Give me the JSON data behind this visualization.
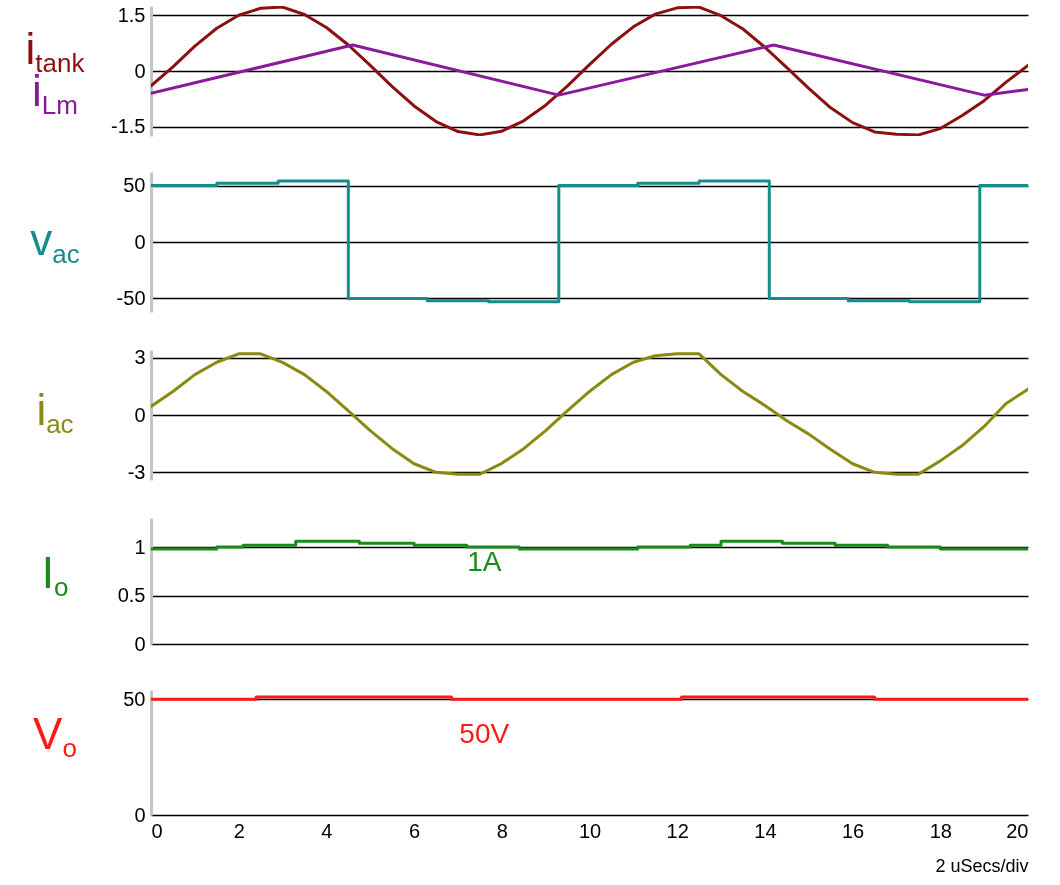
{
  "chart_data": [
    {
      "type": "line",
      "legend": "left",
      "tick_labels": "y",
      "grid": "y",
      "xlim": [
        0,
        20
      ],
      "ylim": [
        -1.75,
        1.75
      ],
      "yticks": [
        -1.5,
        0,
        1.5
      ],
      "series": [
        {
          "name": "i$_{tank}$",
          "color": "#8b1010",
          "x": [
            0,
            0.5,
            1,
            1.5,
            2,
            2.5,
            3,
            3.5,
            4,
            4.5,
            5,
            5.5,
            6,
            6.5,
            7,
            7.5,
            8,
            8.5,
            9,
            9.5,
            10,
            10.5,
            11,
            11.5,
            12,
            12.5,
            13,
            13.5,
            14,
            14.5,
            15,
            15.5,
            16,
            16.5,
            17,
            17.5,
            18,
            18.5,
            19,
            19.5,
            20
          ],
          "values": [
            -0.4,
            0.11,
            0.67,
            1.15,
            1.5,
            1.69,
            1.72,
            1.52,
            1.17,
            0.7,
            0.15,
            -0.42,
            -0.94,
            -1.36,
            -1.63,
            -1.72,
            -1.62,
            -1.34,
            -0.92,
            -0.4,
            0.17,
            0.72,
            1.19,
            1.53,
            1.7,
            1.72,
            1.49,
            1.13,
            0.64,
            0.09,
            -0.47,
            -0.99,
            -1.39,
            -1.64,
            -1.7,
            -1.72,
            -1.55,
            -1.2,
            -0.8,
            -0.3,
            0.15
          ]
        },
        {
          "name": "i$_{Lm}$",
          "color": "#8a1a9a",
          "x": [
            0,
            4.6,
            9.3,
            14.2,
            19,
            20
          ],
          "values": [
            -0.6,
            0.7,
            -0.65,
            0.7,
            -0.65,
            -0.5
          ]
        }
      ]
    },
    {
      "type": "line",
      "legend": "left",
      "tick_labels": "y",
      "grid": "y",
      "xlim": [
        0,
        20
      ],
      "ylim": [
        -62,
        62
      ],
      "yticks": [
        -50,
        0,
        50
      ],
      "series": [
        {
          "name": "v$_{ac}$",
          "color": "#178c8c",
          "x": [
            0,
            1.5,
            1.5,
            2.9,
            2.9,
            4.5,
            4.5,
            6.3,
            6.3,
            7.7,
            7.7,
            9.3,
            9.3,
            11.1,
            11.1,
            12.5,
            12.5,
            14.1,
            14.1,
            15.9,
            15.9,
            17.3,
            17.3,
            18.9,
            18.9,
            20
          ],
          "values": [
            50,
            50,
            52,
            52,
            54,
            54,
            -50,
            -50,
            -52,
            -52,
            -53,
            -53,
            50,
            50,
            52,
            52,
            54,
            54,
            -50,
            -50,
            -52,
            -52,
            -53,
            -53,
            50,
            50
          ]
        }
      ]
    },
    {
      "type": "line",
      "legend": "left",
      "tick_labels": "y",
      "grid": "y",
      "xlim": [
        0,
        20
      ],
      "ylim": [
        -3.4,
        3.4
      ],
      "yticks": [
        -3,
        0,
        3
      ],
      "series": [
        {
          "name": "i$_{ac}$",
          "color": "#8a8a12",
          "x": [
            0,
            0.5,
            1,
            1.5,
            2,
            2.5,
            3,
            3.5,
            4,
            4.5,
            5,
            5.5,
            6,
            6.5,
            7,
            7.5,
            8,
            8.5,
            9,
            9.5,
            10,
            10.5,
            11,
            11.5,
            12,
            12.5,
            13,
            13.5,
            14,
            14.5,
            15,
            15.5,
            16,
            16.5,
            17,
            17.5,
            18,
            18.5,
            19,
            19.5,
            20
          ],
          "values": [
            0.45,
            1.23,
            2.11,
            2.76,
            3.2,
            3.2,
            2.75,
            2.11,
            1.23,
            0.22,
            -0.82,
            -1.76,
            -2.55,
            -3.0,
            -3.1,
            -3.1,
            -2.53,
            -1.76,
            -0.82,
            0.23,
            1.23,
            2.11,
            2.76,
            3.1,
            3.2,
            3.2,
            2.11,
            1.23,
            0.5,
            -0.3,
            -1.0,
            -1.8,
            -2.55,
            -3.0,
            -3.1,
            -3.1,
            -2.4,
            -1.6,
            -0.6,
            0.6,
            1.35
          ]
        }
      ]
    },
    {
      "type": "line",
      "legend": "left",
      "tick_labels": "y",
      "grid": "y",
      "xlim": [
        0,
        20
      ],
      "ylim": [
        0,
        1.3
      ],
      "yticks": [
        0,
        0.5,
        1
      ],
      "annotations": [
        "1A"
      ],
      "series": [
        {
          "name": "I$_{o}$",
          "color": "#1a8a1a",
          "x": [
            0,
            1.5,
            1.5,
            2.1,
            2.1,
            3.3,
            3.3,
            4.75,
            4.75,
            6.0,
            6.0,
            7.2,
            7.2,
            8.4,
            8.4,
            11.1,
            11.1,
            12.3,
            12.3,
            13.0,
            13.0,
            14.4,
            14.4,
            15.6,
            15.6,
            16.8,
            16.8,
            18.0,
            18.0,
            20
          ],
          "values": [
            0.98,
            0.98,
            1.0,
            1.0,
            1.02,
            1.02,
            1.06,
            1.06,
            1.04,
            1.04,
            1.02,
            1.02,
            1.0,
            1.0,
            0.98,
            0.98,
            1.0,
            1.0,
            1.02,
            1.02,
            1.06,
            1.06,
            1.04,
            1.04,
            1.02,
            1.02,
            1.0,
            1.0,
            0.98,
            0.98
          ]
        }
      ]
    },
    {
      "type": "line",
      "legend": "left",
      "grid": "y",
      "xlim": [
        0,
        20
      ],
      "xticks": [
        0,
        2,
        4,
        6,
        8,
        10,
        12,
        14,
        16,
        18,
        20
      ],
      "xlabel": "2 uSecs/div",
      "ylim": [
        0,
        54
      ],
      "yticks": [
        0,
        50
      ],
      "annotations": [
        "50V"
      ],
      "series": [
        {
          "name": "V$_{o}$",
          "color": "#ff1a1a",
          "x": [
            0,
            2.4,
            2.4,
            6.85,
            6.85,
            12.1,
            12.1,
            16.5,
            16.5,
            20
          ],
          "values": [
            50,
            50,
            51,
            51,
            50,
            50,
            51,
            51,
            50,
            50
          ]
        }
      ]
    }
  ]
}
